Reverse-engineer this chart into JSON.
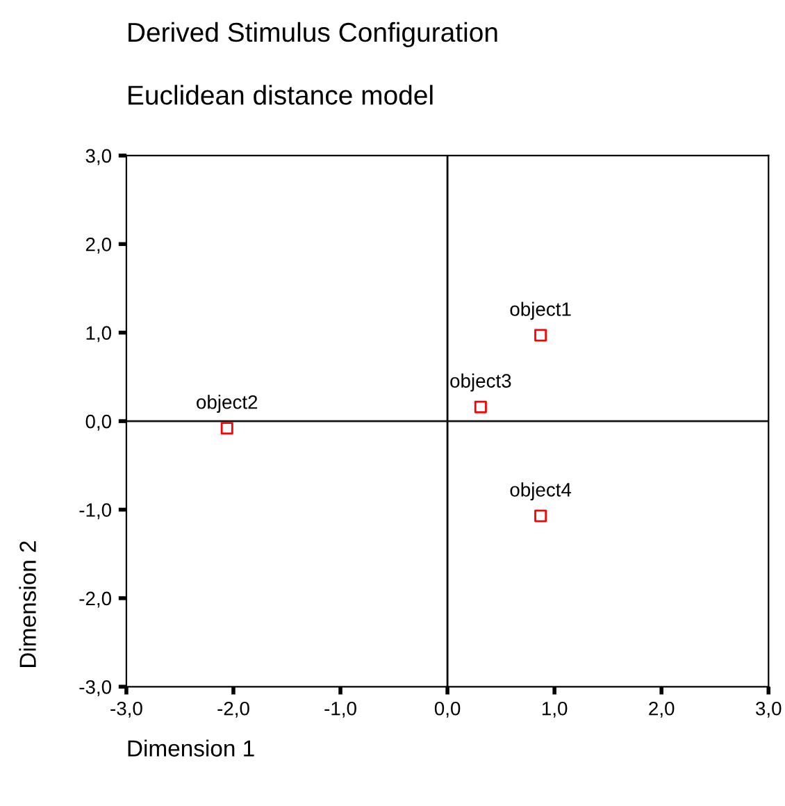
{
  "chart_data": {
    "type": "scatter",
    "title": "Derived Stimulus Configuration",
    "subtitle": "Euclidean distance model",
    "xlabel": "Dimension 1",
    "ylabel": "Dimension 2",
    "x": [
      0.87,
      -2.06,
      0.31,
      0.87
    ],
    "series": [
      {
        "color": "#ff0000",
        "values": [
          0.97,
          -0.08,
          0.16,
          -1.07
        ]
      }
    ],
    "marker": "square",
    "grid": false,
    "legend": false,
    "xlim": [
      -3,
      3
    ],
    "ylim": [
      -3,
      3
    ],
    "xticks": [
      {
        "value": -3,
        "label": "-3,0"
      },
      {
        "value": -2,
        "label": "-2,0"
      },
      {
        "value": -1,
        "label": "-1,0"
      },
      {
        "value": 0,
        "label": "0,0"
      },
      {
        "value": 1,
        "label": "1,0"
      },
      {
        "value": 2,
        "label": "2,0"
      },
      {
        "value": 3,
        "label": "3,0"
      }
    ],
    "yticks": [
      {
        "value": -3,
        "label": "-3,0"
      },
      {
        "value": -2,
        "label": "-2,0"
      },
      {
        "value": -1,
        "label": "-1,0"
      },
      {
        "value": 0,
        "label": "0,0"
      },
      {
        "value": 1,
        "label": "1,0"
      },
      {
        "value": 2,
        "label": "2,0"
      },
      {
        "value": 3,
        "label": "3,0"
      }
    ],
    "ref_lines": [
      {
        "axis": "x",
        "value": 0,
        "color": "#000000"
      },
      {
        "axis": "y",
        "value": 0,
        "color": "#141414"
      }
    ],
    "annotations": [
      {
        "text": "object1",
        "x": 0.87,
        "y": 0.97
      },
      {
        "text": "object2",
        "x": -2.06,
        "y": -0.08
      },
      {
        "text": "object3",
        "x": 0.31,
        "y": 0.16
      },
      {
        "text": "object4",
        "x": 0.87,
        "y": -1.07
      }
    ]
  }
}
